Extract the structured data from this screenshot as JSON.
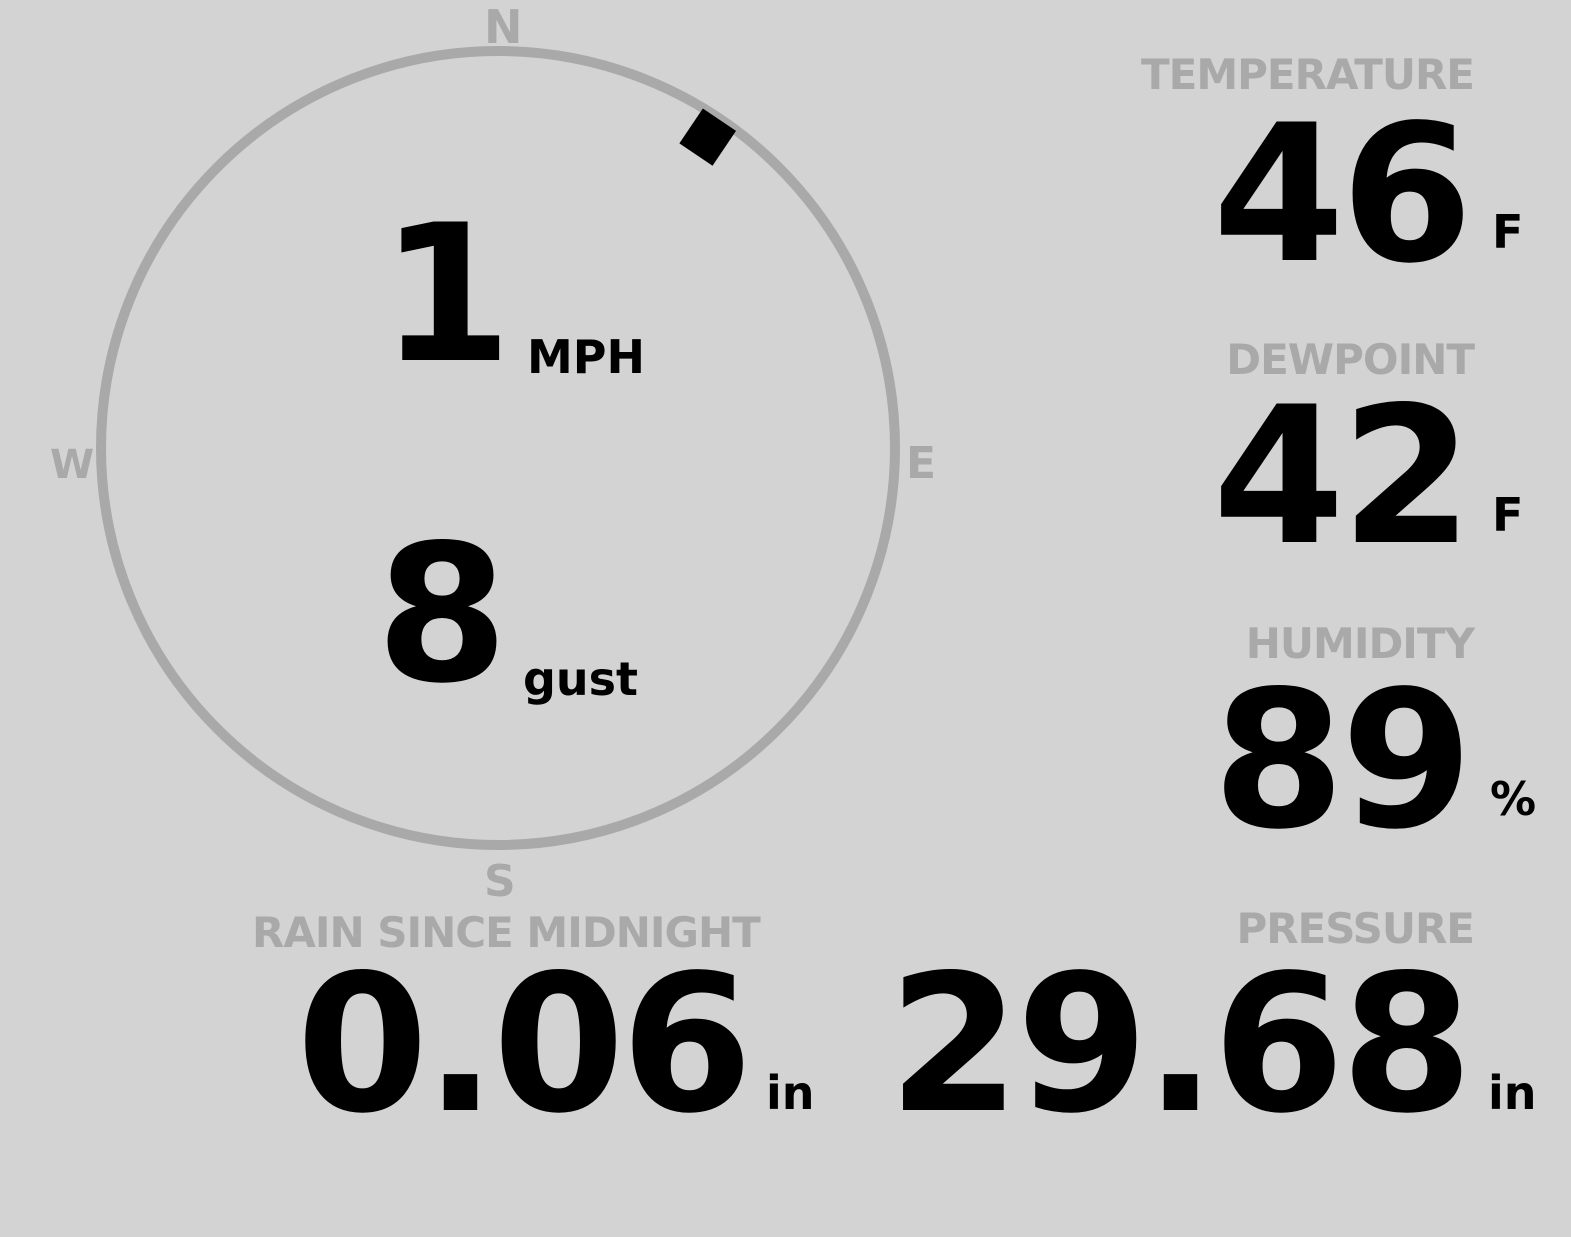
{
  "colors": {
    "background": "#d3d3d3",
    "label": "#a9a9a9",
    "value": "#000000"
  },
  "compass": {
    "n": "N",
    "e": "E",
    "s": "S",
    "w": "W",
    "wind_direction_deg": 34
  },
  "wind": {
    "speed": "1",
    "speed_unit": "MPH",
    "gust": "8",
    "gust_unit": "gust"
  },
  "temperature": {
    "label": "TEMPERATURE",
    "value": "46",
    "unit": "F"
  },
  "dewpoint": {
    "label": "DEWPOINT",
    "value": "42",
    "unit": "F"
  },
  "humidity": {
    "label": "HUMIDITY",
    "value": "89",
    "unit": "%"
  },
  "rain": {
    "label": "RAIN SINCE MIDNIGHT",
    "value": "0.06",
    "unit": "in"
  },
  "pressure": {
    "label": "PRESSURE",
    "value": "29.68",
    "unit": "in"
  }
}
